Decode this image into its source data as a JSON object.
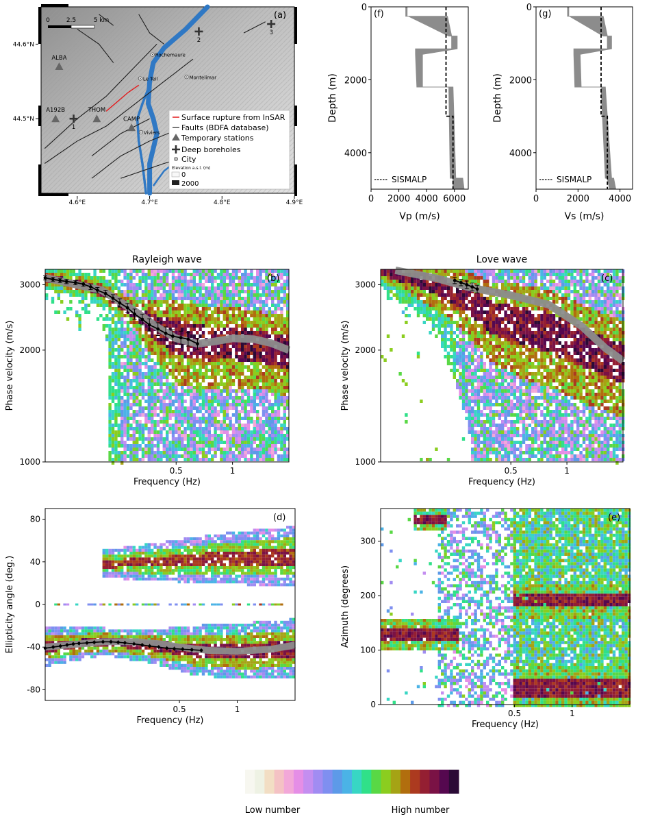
{
  "chart_data": [
    {
      "id": "a",
      "type": "map",
      "panel_label": "(a)",
      "x_ticks": [
        {
          "v": 4.6,
          "label": "4.6°E"
        },
        {
          "v": 4.7,
          "label": "4.7°E"
        },
        {
          "v": 4.8,
          "label": "4.8°E"
        },
        {
          "v": 4.9,
          "label": "4.9°E"
        }
      ],
      "y_ticks": [
        {
          "v": 44.5,
          "label": "44.5°N"
        },
        {
          "v": 44.6,
          "label": "44.6°N"
        }
      ],
      "xlim": [
        4.55,
        4.9
      ],
      "ylim": [
        44.4,
        44.65
      ],
      "scalebar": {
        "labels": [
          "0",
          "2.5",
          "5 km"
        ]
      },
      "stations": [
        {
          "name": "ALBA",
          "lon": 4.575,
          "lat": 44.57
        },
        {
          "name": "A192B",
          "lon": 4.57,
          "lat": 44.5
        },
        {
          "name": "THOM",
          "lon": 4.627,
          "lat": 44.5
        },
        {
          "name": "CAMP",
          "lon": 4.675,
          "lat": 44.488
        }
      ],
      "boreholes": [
        {
          "name": "1",
          "lon": 4.595,
          "lat": 44.5
        },
        {
          "name": "2",
          "lon": 4.768,
          "lat": 44.617
        },
        {
          "name": "3",
          "lon": 4.868,
          "lat": 44.627
        }
      ],
      "cities": [
        {
          "name": "Rochemaure",
          "lon": 4.704,
          "lat": 44.586
        },
        {
          "name": "Le Teil",
          "lon": 4.687,
          "lat": 44.554
        },
        {
          "name": "Montelimar",
          "lon": 4.751,
          "lat": 44.556
        },
        {
          "name": "Viviers",
          "lon": 4.688,
          "lat": 44.482
        }
      ],
      "legend": {
        "rupture": "Surface rupture from InSAR",
        "faults": "Faults (BDFA database)",
        "stations": "Temporary stations",
        "boreholes": "Deep boreholes",
        "city": "City",
        "elevation_title": "Elevation a.s.l. (m)",
        "elev_low": "0",
        "elev_high": "2000"
      },
      "colors": {
        "river": "#2f78c4",
        "rupture": "#e31a1c",
        "faults": "#1f1f1f",
        "markers": "#666666"
      }
    },
    {
      "id": "f",
      "type": "line",
      "panel_label": "(f)",
      "xlabel": "Vp (m/s)",
      "ylabel": "Depth (m)",
      "xlim": [
        0,
        7000
      ],
      "ylim": [
        5000,
        0
      ],
      "x_ticks": [
        0,
        2000,
        4000,
        6000
      ],
      "y_ticks": [
        0,
        2000,
        4000
      ],
      "series": [
        {
          "kind": "band",
          "color": "#8c8c8c",
          "points": [
            {
              "depth": 0,
              "lo": 2500,
              "hi": 2600
            },
            {
              "depth": 260,
              "lo": 2500,
              "hi": 2600
            },
            {
              "depth": 260,
              "lo": 2700,
              "hi": 5500
            },
            {
              "depth": 800,
              "lo": 5600,
              "hi": 5800
            },
            {
              "depth": 800,
              "lo": 5800,
              "hi": 6200
            },
            {
              "depth": 1150,
              "lo": 5800,
              "hi": 6200
            },
            {
              "depth": 1150,
              "lo": 3200,
              "hi": 6200
            },
            {
              "depth": 1300,
              "lo": 3200,
              "hi": 3700
            },
            {
              "depth": 2200,
              "lo": 3300,
              "hi": 3700
            },
            {
              "depth": 2200,
              "lo": 5600,
              "hi": 5900
            },
            {
              "depth": 4700,
              "lo": 5700,
              "hi": 6100
            },
            {
              "depth": 4700,
              "lo": 5900,
              "hi": 6600
            },
            {
              "depth": 5000,
              "lo": 5900,
              "hi": 6700
            }
          ]
        },
        {
          "name": "SISMALP",
          "kind": "dashed",
          "color": "#000000",
          "points": [
            {
              "depth": 0,
              "v": 5400
            },
            {
              "depth": 3000,
              "v": 5400
            },
            {
              "depth": 3000,
              "v": 5900
            },
            {
              "depth": 5000,
              "v": 5900
            }
          ]
        }
      ]
    },
    {
      "id": "g",
      "type": "line",
      "panel_label": "(g)",
      "xlabel": "Vs (m/s)",
      "ylabel": "Depth (m)",
      "xlim": [
        0,
        4600
      ],
      "ylim": [
        5000,
        0
      ],
      "x_ticks": [
        0,
        2000,
        4000
      ],
      "y_ticks": [
        0,
        2000,
        4000
      ],
      "series": [
        {
          "kind": "band",
          "color": "#8c8c8c",
          "points": [
            {
              "depth": 0,
              "lo": 1500,
              "hi": 1560
            },
            {
              "depth": 260,
              "lo": 1500,
              "hi": 1560
            },
            {
              "depth": 260,
              "lo": 1600,
              "hi": 3200
            },
            {
              "depth": 800,
              "lo": 3200,
              "hi": 3400
            },
            {
              "depth": 800,
              "lo": 3400,
              "hi": 3600
            },
            {
              "depth": 1150,
              "lo": 3400,
              "hi": 3600
            },
            {
              "depth": 1150,
              "lo": 1800,
              "hi": 3600
            },
            {
              "depth": 1300,
              "lo": 1800,
              "hi": 2100
            },
            {
              "depth": 2200,
              "lo": 1850,
              "hi": 2150
            },
            {
              "depth": 2200,
              "lo": 3100,
              "hi": 3300
            },
            {
              "depth": 4700,
              "lo": 3300,
              "hi": 3600
            },
            {
              "depth": 4700,
              "lo": 3400,
              "hi": 3700
            },
            {
              "depth": 5000,
              "lo": 3500,
              "hi": 3800
            }
          ]
        },
        {
          "name": "SISMALP",
          "kind": "dashed",
          "color": "#000000",
          "points": [
            {
              "depth": 0,
              "v": 3100
            },
            {
              "depth": 3000,
              "v": 3100
            },
            {
              "depth": 3000,
              "v": 3400
            },
            {
              "depth": 5000,
              "v": 3400
            }
          ]
        }
      ]
    },
    {
      "id": "b",
      "type": "heatmap",
      "panel_label": "(b)",
      "title": "Rayleigh wave",
      "xlabel": "Frequency (Hz)",
      "ylabel": "Phase velocity (m/s)",
      "xscale": "log",
      "xlim": [
        0.1,
        2.0
      ],
      "yscale": "log",
      "ylim": [
        1000,
        3300
      ],
      "x_ticks": [
        {
          "v": 0.5,
          "label": "0.5"
        },
        {
          "v": 1,
          "label": "1"
        }
      ],
      "y_ticks": [
        {
          "v": 1000,
          "label": "1000"
        },
        {
          "v": 2000,
          "label": "2000"
        },
        {
          "v": 3000,
          "label": "3000"
        }
      ],
      "model_curve": {
        "x": [
          0.1,
          0.2,
          0.3,
          0.4,
          0.5,
          0.65,
          0.8,
          1.0,
          1.3,
          1.6,
          2.0
        ],
        "y": [
          3130,
          2900,
          2550,
          2300,
          2150,
          2080,
          2110,
          2150,
          2140,
          2090,
          2000
        ]
      },
      "picked": {
        "x": [
          0.1,
          0.11,
          0.12,
          0.13,
          0.145,
          0.16,
          0.175,
          0.19,
          0.21,
          0.23,
          0.25,
          0.275,
          0.3,
          0.33,
          0.36,
          0.4,
          0.44,
          0.48,
          0.53,
          0.58,
          0.65
        ],
        "y": [
          3130,
          3100,
          3080,
          3060,
          3040,
          3010,
          2960,
          2900,
          2840,
          2760,
          2680,
          2600,
          2500,
          2420,
          2340,
          2280,
          2220,
          2180,
          2160,
          2140,
          2080
        ],
        "err": [
          40,
          40,
          40,
          40,
          40,
          40,
          50,
          50,
          60,
          60,
          70,
          70,
          80,
          80,
          90,
          90,
          90,
          90,
          90,
          90,
          70
        ]
      },
      "density_ridge": [
        {
          "f": 0.1,
          "v": 3130,
          "w": 220
        },
        {
          "f": 0.15,
          "v": 3020,
          "w": 240
        },
        {
          "f": 0.2,
          "v": 2870,
          "w": 260
        },
        {
          "f": 0.26,
          "v": 2640,
          "w": 300
        },
        {
          "f": 0.3,
          "v": 2520,
          "w": 380
        },
        {
          "f": 0.38,
          "v": 2320,
          "w": 700
        },
        {
          "f": 0.5,
          "v": 2160,
          "w": 900
        },
        {
          "f": 0.7,
          "v": 2100,
          "w": 900
        },
        {
          "f": 1.0,
          "v": 2100,
          "w": 850
        },
        {
          "f": 1.5,
          "v": 2040,
          "w": 800
        },
        {
          "f": 2.0,
          "v": 1980,
          "w": 800
        }
      ]
    },
    {
      "id": "c",
      "type": "heatmap",
      "panel_label": "(c)",
      "title": "Love wave",
      "xlabel": "Frequency (Hz)",
      "ylabel": "Phase velocity (m/s)",
      "xscale": "log",
      "xlim": [
        0.1,
        2.0
      ],
      "yscale": "log",
      "ylim": [
        1000,
        3300
      ],
      "x_ticks": [
        {
          "v": 0.5,
          "label": "0.5"
        },
        {
          "v": 1,
          "label": "1"
        }
      ],
      "y_ticks": [
        {
          "v": 1000,
          "label": "1000"
        },
        {
          "v": 2000,
          "label": "2000"
        },
        {
          "v": 3000,
          "label": "3000"
        }
      ],
      "model_curve": {
        "x": [
          0.12,
          0.2,
          0.3,
          0.5,
          0.8,
          1.2,
          1.6,
          2.0
        ],
        "y": [
          3280,
          3120,
          2950,
          2810,
          2650,
          2320,
          2030,
          1870
        ]
      },
      "picked": {
        "x": [
          0.25,
          0.27,
          0.29,
          0.31,
          0.33
        ],
        "y": [
          3080,
          3040,
          3000,
          2960,
          2920
        ],
        "err": [
          60,
          60,
          70,
          70,
          70
        ]
      },
      "density_ridge": [
        {
          "f": 0.1,
          "v": 3250,
          "w": 260
        },
        {
          "f": 0.2,
          "v": 3000,
          "w": 700
        },
        {
          "f": 0.3,
          "v": 2700,
          "w": 900
        },
        {
          "f": 0.4,
          "v": 2450,
          "w": 1000
        },
        {
          "f": 0.55,
          "v": 2350,
          "w": 1100
        },
        {
          "f": 0.8,
          "v": 2250,
          "w": 1100
        },
        {
          "f": 1.2,
          "v": 2050,
          "w": 1000
        },
        {
          "f": 2.0,
          "v": 1850,
          "w": 900
        }
      ]
    },
    {
      "id": "d",
      "type": "heatmap",
      "panel_label": "(d)",
      "xlabel": "Frequency (Hz)",
      "ylabel": "Ellipticity angle (deg.)",
      "xscale": "log",
      "xlim": [
        0.1,
        2.0
      ],
      "ylim": [
        -90,
        90
      ],
      "x_ticks": [
        {
          "v": 0.5,
          "label": "0.5"
        },
        {
          "v": 1,
          "label": "1"
        }
      ],
      "y_ticks": [
        {
          "v": -80,
          "label": "-80"
        },
        {
          "v": -40,
          "label": "-40"
        },
        {
          "v": 0,
          "label": "0"
        },
        {
          "v": 40,
          "label": "40"
        },
        {
          "v": 80,
          "label": "80"
        }
      ],
      "model_curve": {
        "x": [
          0.1,
          0.15,
          0.2,
          0.3,
          0.4,
          0.5,
          0.7,
          1.0,
          1.5,
          2.0
        ],
        "y": [
          -40,
          -37,
          -35,
          -35,
          -37,
          -40,
          -43,
          -44,
          -42,
          -38
        ]
      },
      "picked": {
        "x": [
          0.1,
          0.11,
          0.12,
          0.13,
          0.14,
          0.15,
          0.165,
          0.18,
          0.2,
          0.22,
          0.24,
          0.26,
          0.29,
          0.32,
          0.35,
          0.39,
          0.43,
          0.47,
          0.52,
          0.58,
          0.65
        ],
        "y": [
          -41,
          -40,
          -39,
          -38,
          -37,
          -36.5,
          -36,
          -35.5,
          -35,
          -35,
          -35.5,
          -36,
          -37,
          -38,
          -39,
          -40,
          -41,
          -41.5,
          -42,
          -42.5,
          -43
        ],
        "err": [
          2,
          2,
          2,
          2,
          2,
          2,
          2,
          2,
          2,
          2,
          2,
          2,
          2,
          2,
          2,
          2,
          2,
          2,
          2,
          2,
          2
        ]
      },
      "density_ridge": [
        {
          "f": 0.1,
          "v": -40,
          "w": 14
        },
        {
          "f": 0.2,
          "v": -35,
          "w": 10
        },
        {
          "f": 0.35,
          "v": -39,
          "w": 12
        },
        {
          "f": 0.6,
          "v": -43,
          "w": 18
        },
        {
          "f": 1.0,
          "v": -44,
          "w": 20
        },
        {
          "f": 2.0,
          "v": -42,
          "w": 22
        }
      ],
      "upper_ridge": [
        {
          "f": 0.2,
          "v": 38,
          "w": 10
        },
        {
          "f": 0.4,
          "v": 40,
          "w": 14
        },
        {
          "f": 0.8,
          "v": 43,
          "w": 18
        },
        {
          "f": 2.0,
          "v": 45,
          "w": 22
        }
      ]
    },
    {
      "id": "e",
      "type": "heatmap",
      "panel_label": "(e)",
      "xlabel": "Frequency (Hz)",
      "ylabel": "Azimuth (degrees)",
      "xscale": "log",
      "xlim": [
        0.1,
        2.0
      ],
      "ylim": [
        0,
        360
      ],
      "x_ticks": [
        {
          "v": 0.5,
          "label": "0.5"
        },
        {
          "v": 1,
          "label": "1"
        }
      ],
      "y_ticks": [
        {
          "v": 0,
          "label": "0"
        },
        {
          "v": 100,
          "label": "100"
        },
        {
          "v": 200,
          "label": "200"
        },
        {
          "v": 300,
          "label": "300"
        }
      ],
      "hot_bands": [
        {
          "f0": 0.1,
          "f1": 0.26,
          "v": 130,
          "w": 30
        },
        {
          "f0": 0.15,
          "f1": 0.22,
          "v": 340,
          "w": 20
        },
        {
          "f0": 0.5,
          "f1": 2.0,
          "v": 30,
          "w": 40
        },
        {
          "f0": 0.5,
          "f1": 2.0,
          "v": 190,
          "w": 30
        }
      ]
    }
  ],
  "colorbar": {
    "colors": [
      "#f7f7f0",
      "#eef2e4",
      "#f2dec4",
      "#f4c2c4",
      "#f2a8d8",
      "#e58ee6",
      "#c48ef0",
      "#a18cf2",
      "#7f8ff0",
      "#5d9ae8",
      "#4bb3e6",
      "#38d6c4",
      "#30e089",
      "#59d845",
      "#8bcd1f",
      "#a5a315",
      "#b16e0e",
      "#ac3a1f",
      "#941f32",
      "#7a1245",
      "#55084f",
      "#2b0a36"
    ],
    "low_label": "Low number",
    "high_label": "High number"
  }
}
